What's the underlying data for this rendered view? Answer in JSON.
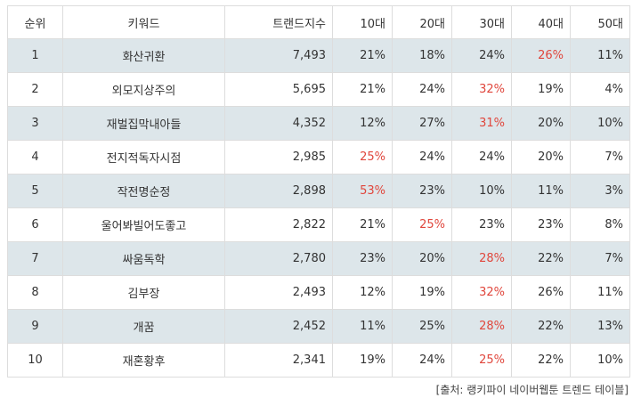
{
  "headers": [
    "순위",
    "키워드",
    "트랜드지수",
    "10대",
    "20대",
    "30대",
    "40대",
    "50대"
  ],
  "rows": [
    {
      "rank": "1",
      "keyword": "화산귀환",
      "index": "7,493",
      "ages": [
        "21%",
        "18%",
        "24%",
        "26%",
        "11%"
      ],
      "highlight": 3
    },
    {
      "rank": "2",
      "keyword": "외모지상주의",
      "index": "5,695",
      "ages": [
        "21%",
        "24%",
        "32%",
        "19%",
        "4%"
      ],
      "highlight": 2
    },
    {
      "rank": "3",
      "keyword": "재벌집막내아들",
      "index": "4,352",
      "ages": [
        "12%",
        "27%",
        "31%",
        "20%",
        "10%"
      ],
      "highlight": 2
    },
    {
      "rank": "4",
      "keyword": "전지적독자시점",
      "index": "2,985",
      "ages": [
        "25%",
        "24%",
        "24%",
        "20%",
        "7%"
      ],
      "highlight": 0
    },
    {
      "rank": "5",
      "keyword": "작전명순정",
      "index": "2,898",
      "ages": [
        "53%",
        "23%",
        "10%",
        "11%",
        "3%"
      ],
      "highlight": 0
    },
    {
      "rank": "6",
      "keyword": "울어봐빌어도좋고",
      "index": "2,822",
      "ages": [
        "21%",
        "25%",
        "23%",
        "23%",
        "8%"
      ],
      "highlight": 1
    },
    {
      "rank": "7",
      "keyword": "싸움독학",
      "index": "2,780",
      "ages": [
        "23%",
        "20%",
        "28%",
        "22%",
        "7%"
      ],
      "highlight": 2
    },
    {
      "rank": "8",
      "keyword": "김부장",
      "index": "2,493",
      "ages": [
        "12%",
        "19%",
        "32%",
        "26%",
        "11%"
      ],
      "highlight": 2
    },
    {
      "rank": "9",
      "keyword": "개꿈",
      "index": "2,452",
      "ages": [
        "11%",
        "25%",
        "28%",
        "22%",
        "13%"
      ],
      "highlight": 2
    },
    {
      "rank": "10",
      "keyword": "재혼황후",
      "index": "2,341",
      "ages": [
        "19%",
        "24%",
        "25%",
        "22%",
        "10%"
      ],
      "highlight": 2
    }
  ],
  "source": "[출처: 랭키파이 네이버웹툰 트렌드 테이블]",
  "colors": {
    "stripe": "#dde6ea",
    "highlight": "#e0463c",
    "border": "#dddddd"
  }
}
